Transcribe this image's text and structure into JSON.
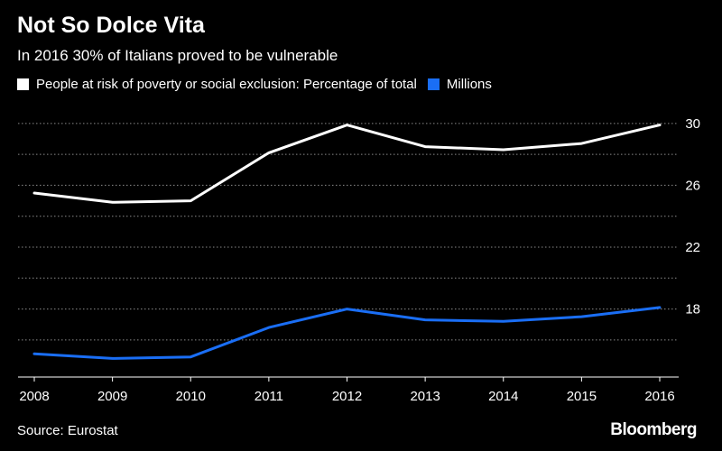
{
  "header": {
    "title": "Not So Dolce Vita",
    "subtitle": "In 2016 30% of Italians proved to be vulnerable"
  },
  "legend": [
    {
      "label": "People at risk of poverty or social exclusion: Percentage of total",
      "color": "#ffffff"
    },
    {
      "label": "Millions",
      "color": "#1a6ef5"
    }
  ],
  "footer": {
    "source": "Source: Eurostat",
    "brand": "Bloomberg"
  },
  "chart_data": {
    "type": "line",
    "title": "Not So Dolce Vita",
    "subtitle": "In 2016 30% of Italians proved to be vulnerable",
    "x": [
      "2008",
      "2009",
      "2010",
      "2011",
      "2012",
      "2013",
      "2014",
      "2015",
      "2016"
    ],
    "yticks": [
      18,
      22,
      26,
      30
    ],
    "ylim": [
      13.6,
      30.4
    ],
    "grid": true,
    "legend_position": "top-left",
    "series": [
      {
        "name": "People at risk of poverty or social exclusion: Percentage of total",
        "color": "#ffffff",
        "values": [
          25.5,
          24.9,
          25.0,
          28.1,
          29.9,
          28.5,
          28.3,
          28.7,
          29.9
        ]
      },
      {
        "name": "Millions",
        "color": "#1a6ef5",
        "values": [
          15.1,
          14.8,
          14.9,
          16.8,
          18.0,
          17.3,
          17.2,
          17.5,
          18.1
        ]
      }
    ]
  }
}
